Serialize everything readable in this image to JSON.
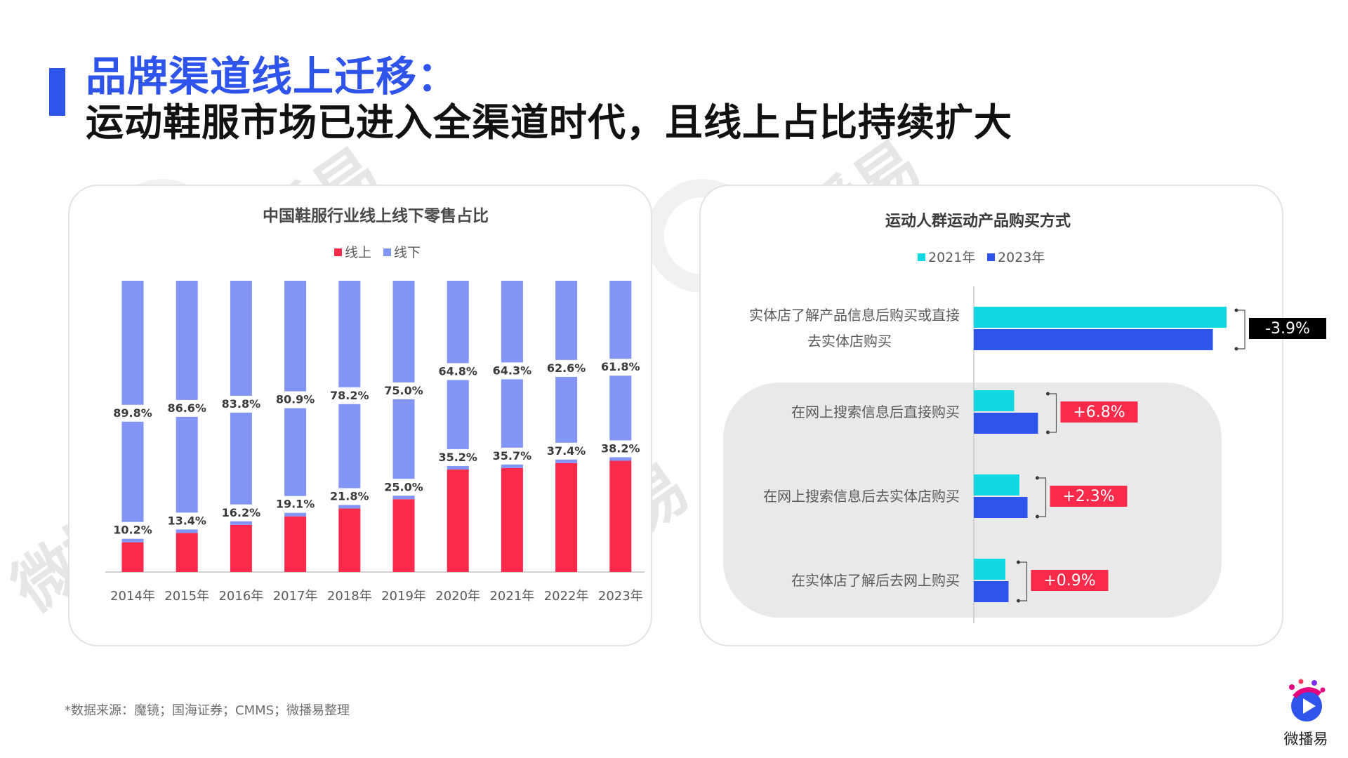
{
  "header": {
    "title_line1": "品牌渠道线上迁移：",
    "title_line2": "运动鞋服市场已进入全渠道时代，且线上占比持续扩大"
  },
  "source_note": "*数据来源：魔镜；国海证券；CMMS；微播易整理",
  "brand": {
    "logo_text": "微播易",
    "watermark_text": "微播易"
  },
  "colors": {
    "accent": "#2f54eb",
    "online_red": "#fa2a4b",
    "offline_blue": "#8295f5",
    "cyan_2021": "#10d7e2",
    "blue_2023": "#2f54eb",
    "label_red_bg": "#fa2a4b",
    "label_black_bg": "#000000"
  },
  "chart_data": [
    {
      "type": "bar",
      "stacked": true,
      "title": "中国鞋服行业线上线下零售占比",
      "categories": [
        "2014年",
        "2015年",
        "2016年",
        "2017年",
        "2018年",
        "2019年",
        "2020年",
        "2021年",
        "2022年",
        "2023年"
      ],
      "series": [
        {
          "name": "线上",
          "values": [
            10.2,
            13.4,
            16.2,
            19.1,
            21.8,
            25.0,
            35.2,
            35.7,
            37.4,
            38.2
          ],
          "labels": [
            "10.2%",
            "13.4%",
            "16.2%",
            "19.1%",
            "21.8%",
            "25.0%",
            "35.2%",
            "35.7%",
            "37.4%",
            "38.2%"
          ]
        },
        {
          "name": "线下",
          "values": [
            89.8,
            86.6,
            83.8,
            80.9,
            78.2,
            75.0,
            64.8,
            64.3,
            62.6,
            61.8
          ],
          "labels": [
            "89.8%",
            "86.6%",
            "83.8%",
            "80.9%",
            "78.2%",
            "75.0%",
            "64.8%",
            "64.3%",
            "62.6%",
            "61.8%"
          ]
        }
      ],
      "ylim": [
        0,
        100
      ],
      "legend_position": "top-center",
      "grid": false
    },
    {
      "type": "bar",
      "orientation": "horizontal",
      "title": "运动人群运动产品购买方式",
      "categories": [
        "实体店了解产品信息后购买或直接去实体店购买",
        "在网上搜索信息后直接购买",
        "在网上搜索信息后去实体店购买",
        "在实体店了解后去网上购买"
      ],
      "category_lines": [
        [
          "实体店了解产品信息后购买或直接",
          "去实体店购买"
        ],
        [
          "在网上搜索信息后直接购买"
        ],
        [
          "在网上搜索信息后去实体店购买"
        ],
        [
          "在实体店了解后去网上购买"
        ]
      ],
      "series": [
        {
          "name": "2021年",
          "values": [
            72.0,
            11.5,
            13.0,
            9.0
          ]
        },
        {
          "name": "2023年",
          "values": [
            68.1,
            18.3,
            15.3,
            9.9
          ]
        }
      ],
      "changes": [
        "-3.9%",
        "+6.8%",
        "+2.3%",
        "+0.9%"
      ],
      "xlim": [
        0,
        80
      ],
      "legend_position": "top-center",
      "grid": false
    }
  ]
}
